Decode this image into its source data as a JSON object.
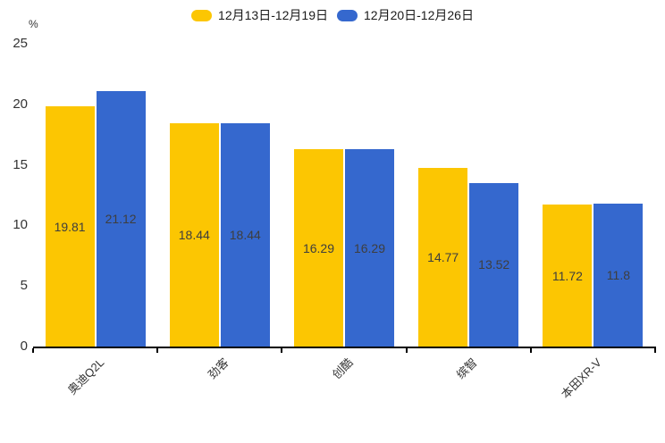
{
  "chart_data": {
    "type": "bar",
    "title": "",
    "unit_label": "%",
    "categories": [
      "奥迪Q2L",
      "劲客",
      "创酷",
      "缤智",
      "本田XR-V"
    ],
    "series": [
      {
        "name": "12月13日-12月19日",
        "color": "#FCC602",
        "values": [
          19.81,
          18.44,
          16.29,
          14.77,
          11.72
        ]
      },
      {
        "name": "12月20日-12月26日",
        "color": "#3568CE",
        "values": [
          21.12,
          18.44,
          16.29,
          13.52,
          11.8
        ]
      }
    ],
    "ylim": [
      0,
      25
    ],
    "yticks": [
      0,
      5,
      10,
      15,
      20,
      25
    ],
    "grid": "off",
    "legend_position": "top-center",
    "value_labels": "inside-center",
    "category_label_rotation": -45,
    "axis_color": "#000000",
    "text_color": "#333333",
    "value_label_color": "#3e3e3e",
    "background_color": "#ffffff"
  }
}
